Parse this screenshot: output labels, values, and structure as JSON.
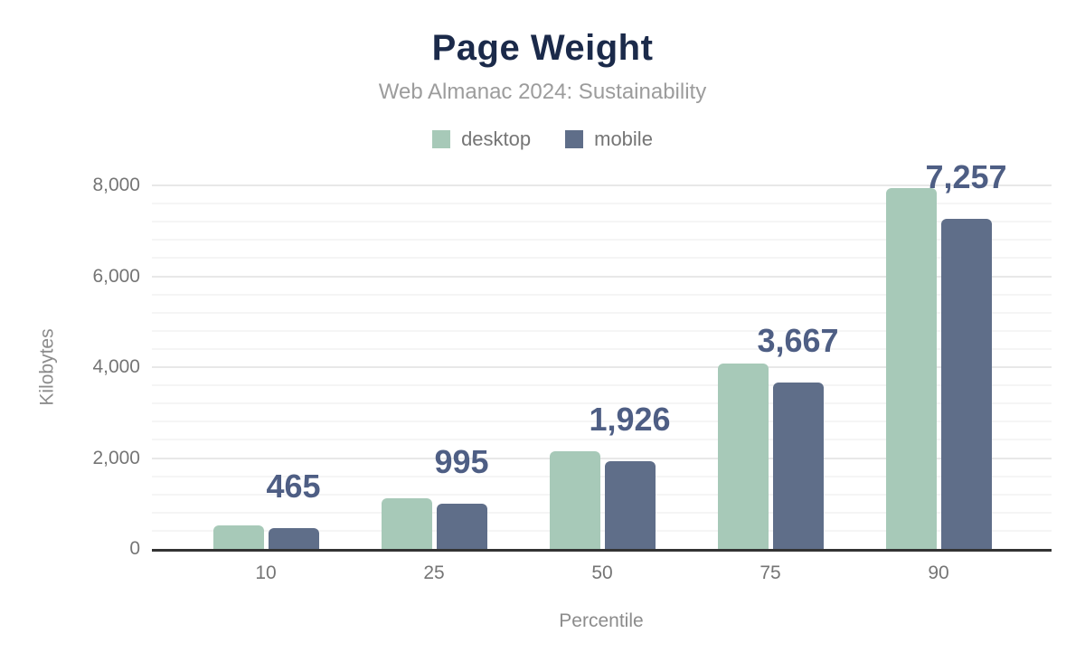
{
  "chart_data": {
    "type": "bar",
    "title": "Page Weight",
    "subtitle": "Web Almanac 2024: Sustainability",
    "xlabel": "Percentile",
    "ylabel": "Kilobytes",
    "categories": [
      "10",
      "25",
      "50",
      "75",
      "90"
    ],
    "series": [
      {
        "name": "desktop",
        "color": "#a7c9b8",
        "values": [
          520,
          1120,
          2140,
          4070,
          7940
        ],
        "values_estimated_from_pixels": true
      },
      {
        "name": "mobile",
        "color": "#5f6e89",
        "values": [
          465,
          995,
          1926,
          3667,
          7257
        ],
        "data_labels": [
          "465",
          "995",
          "1,926",
          "3,667",
          "7,257"
        ]
      }
    ],
    "ylim": [
      0,
      8000
    ],
    "y_major_ticks": [
      0,
      2000,
      4000,
      6000,
      8000
    ],
    "y_tick_labels": [
      "0",
      "2,000",
      "4,000",
      "6,000",
      "8,000"
    ],
    "y_minor_grid_step": 400,
    "grid": true,
    "legend_position": "top"
  },
  "colors": {
    "title_text": "#1b2a4a",
    "subtitle_text": "#9c9c9c",
    "axis_text": "#757575",
    "axis_title_text": "#8c8c8c",
    "data_label_text": "#4e5e84",
    "major_gridline": "#e8e8e8",
    "minor_gridline": "#f5f5f5",
    "baseline": "#333333",
    "background": "#ffffff"
  }
}
